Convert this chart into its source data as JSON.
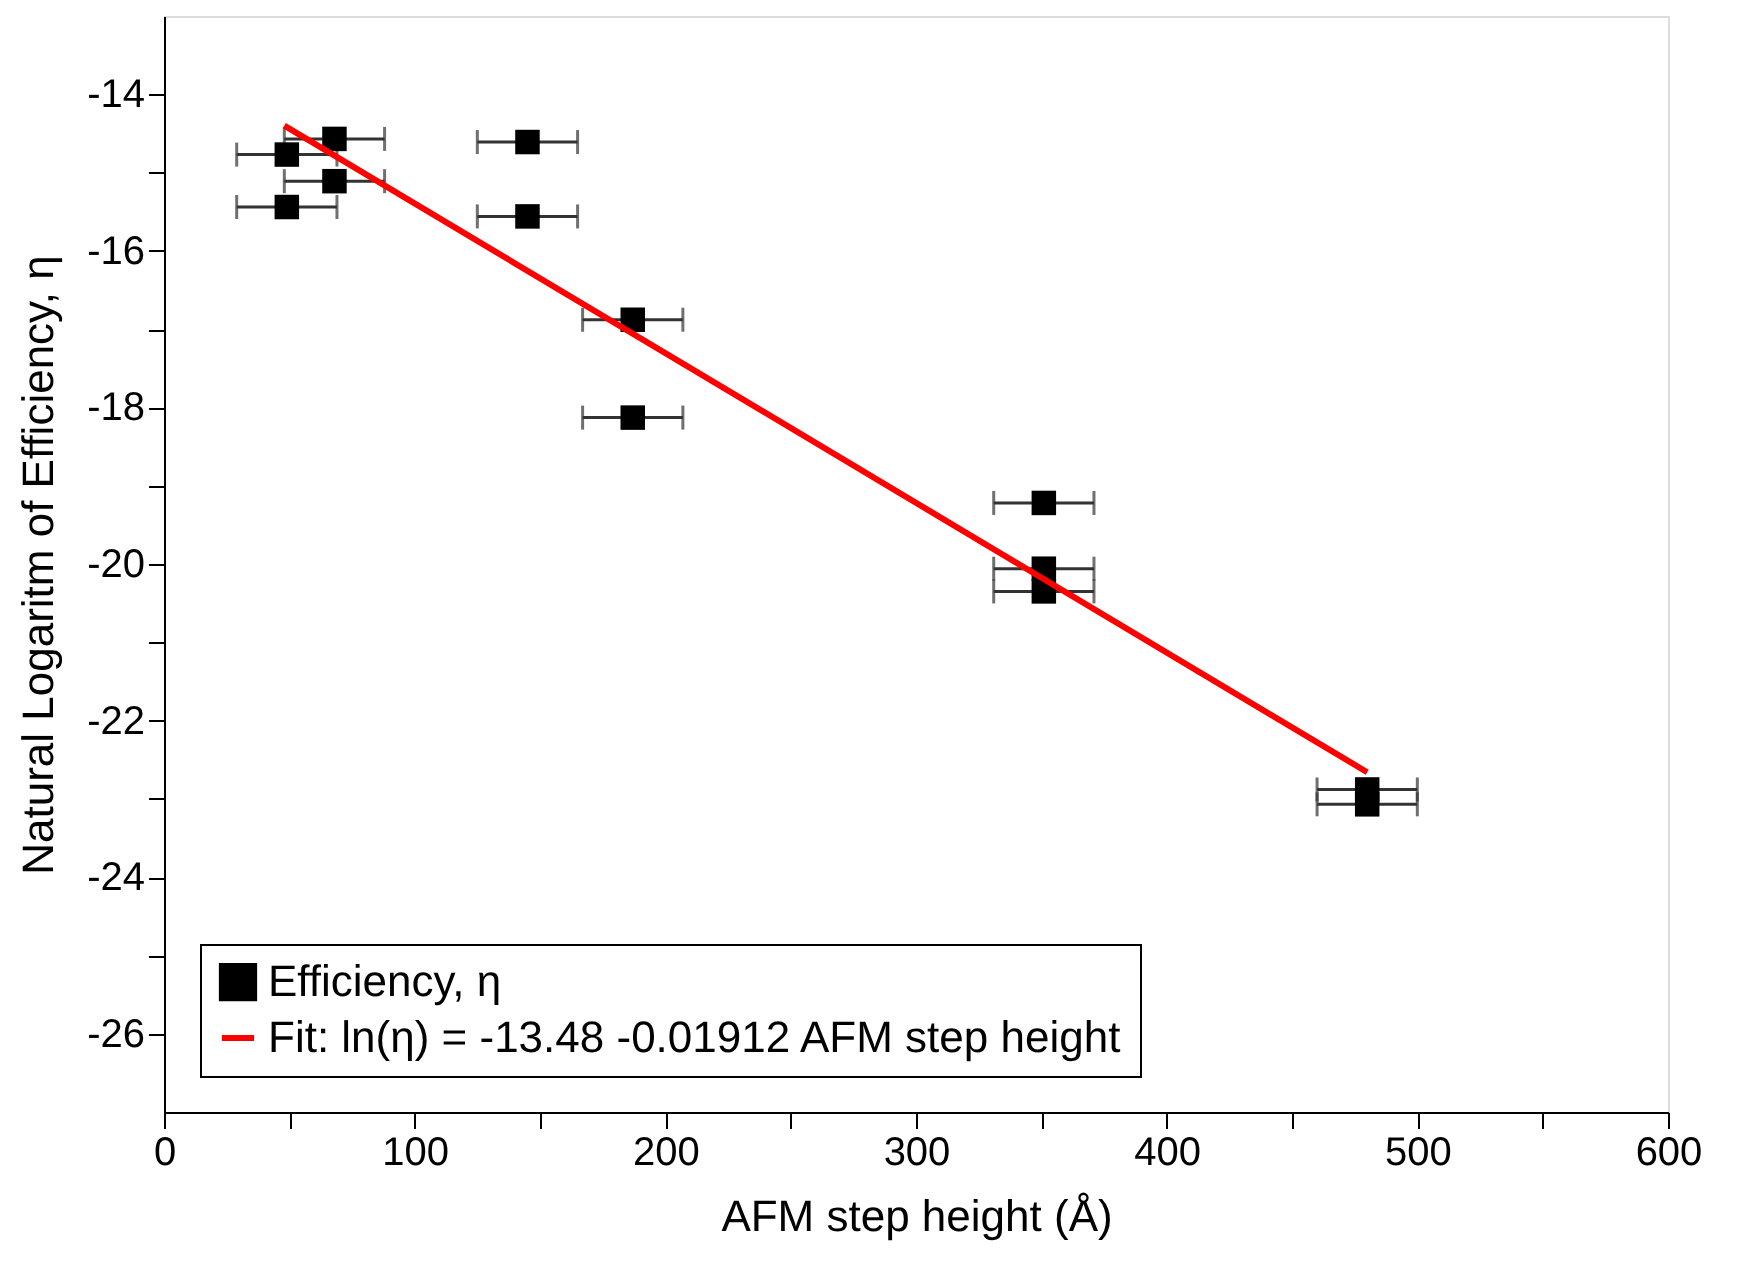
{
  "chart_data": {
    "type": "scatter",
    "xlabel": "AFM step height (Å)",
    "ylabel": "Natural Logaritm of Efficiency, η",
    "xlim": [
      0,
      600
    ],
    "xticks": [
      0,
      {
        "value": 50,
        "label": null
      },
      100,
      {
        "value": 150,
        "label": null
      },
      200,
      {
        "value": 250,
        "label": null
      },
      300,
      {
        "value": 350,
        "label": null
      },
      400,
      {
        "value": 450,
        "label": null
      },
      500,
      {
        "value": 550,
        "label": null
      },
      600
    ],
    "ylim": [
      -27,
      -13
    ],
    "yticks": [
      -26,
      {
        "value": -25,
        "label": null
      },
      -24,
      {
        "value": -23,
        "label": null
      },
      -22,
      {
        "value": -21,
        "label": null
      },
      -20,
      {
        "value": -19,
        "label": null
      },
      -18,
      {
        "value": -17,
        "label": null
      },
      -16,
      {
        "value": -15,
        "label": null
      },
      -14
    ],
    "legend": "bottom left",
    "grid": false,
    "series": [
      {
        "name": "Efficiency, η",
        "marker": "square",
        "color": "#000000",
        "x": [
          49,
          68,
          68,
          49,
          145,
          145,
          187,
          187,
          351,
          351,
          351,
          480,
          480
        ],
        "values": [
          -14.77,
          -14.57,
          -15.11,
          -15.44,
          -14.61,
          -15.56,
          -16.88,
          -18.13,
          -19.22,
          -20.06,
          -20.35,
          -22.88,
          -23.07
        ],
        "xerrors": [
          20,
          20,
          20,
          20,
          20,
          20,
          20,
          20,
          20,
          20,
          20,
          20,
          20
        ]
      },
      {
        "name": "Fit: ln(η) = -13.48 -0.01912 AFM step height",
        "type": "line",
        "marker": "none",
        "line_style": "solid",
        "color": "#ff0000",
        "x": [
          48,
          480
        ],
        "values": [
          -14.4,
          -22.66
        ]
      }
    ]
  }
}
